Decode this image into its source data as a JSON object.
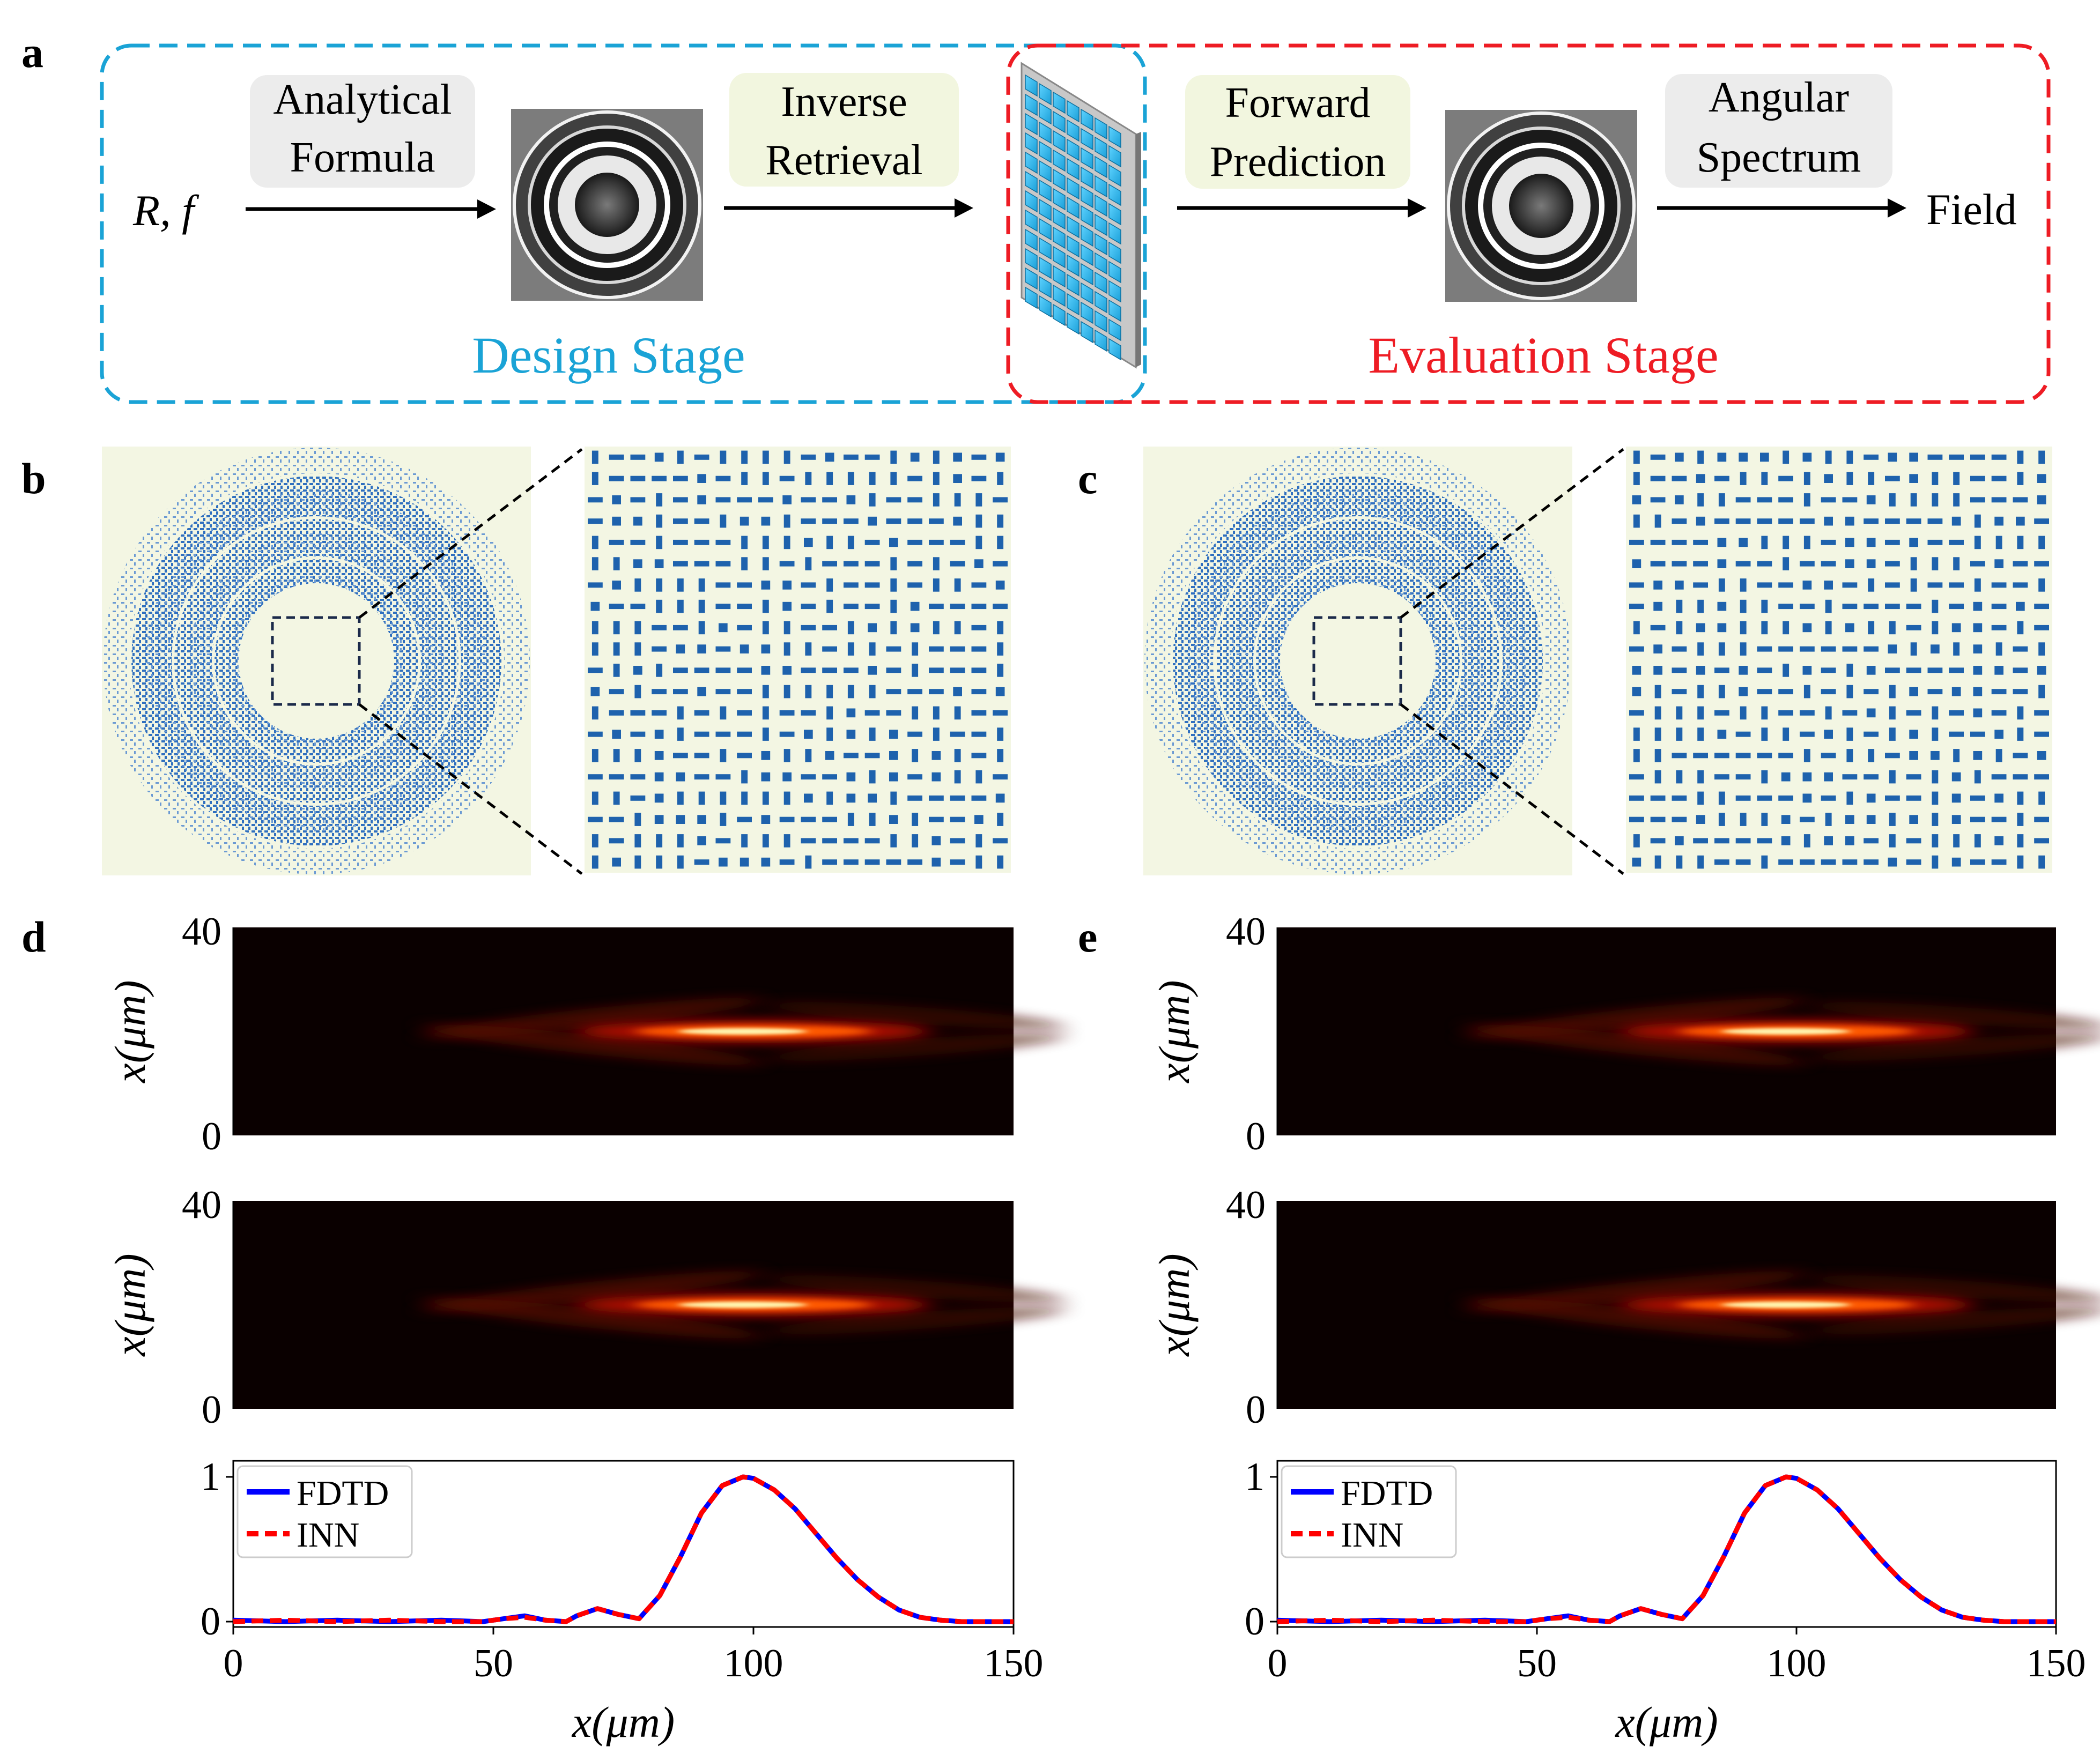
{
  "panels": {
    "a": {
      "label": "a",
      "input_text": "R, f",
      "box_analytical": [
        "Analytical",
        "Formula"
      ],
      "box_inverse": [
        "Inverse",
        "Retrieval"
      ],
      "box_forward": [
        "Forward",
        "Prediction"
      ],
      "box_angular": [
        "Angular",
        "Spectrum"
      ],
      "output_text": "Field",
      "design_stage": "Design Stage",
      "evaluation_stage": "Evaluation Stage"
    },
    "b": {
      "label": "b"
    },
    "c": {
      "label": "c"
    },
    "d": {
      "label": "d"
    },
    "e": {
      "label": "e"
    }
  },
  "colors": {
    "design": "#1aa3d6",
    "evaluation": "#ee1c24",
    "box_gray": "#ececec",
    "box_green": "#f2f6df",
    "meta_cell": "#1e62ad",
    "meta_bg": "#f3f6e3",
    "fdtd": "#0000ff",
    "inn": "#ff0000"
  },
  "icons": {
    "phase_map": "concentric-ring-phase-icon",
    "metasurface": "metasurface-pillar-array-icon"
  },
  "chart_data": [
    {
      "id": "d-top",
      "type": "heatmap",
      "ylabel": "x(μm)",
      "yticks": [
        "0",
        "40"
      ],
      "ylim": [
        0,
        40
      ],
      "xlim": [
        0,
        150
      ],
      "focus_center": [
        100,
        20
      ]
    },
    {
      "id": "d-mid",
      "type": "heatmap",
      "ylabel": "x(μm)",
      "yticks": [
        "0",
        "40"
      ],
      "ylim": [
        0,
        40
      ],
      "xlim": [
        0,
        150
      ],
      "focus_center": [
        100,
        20
      ]
    },
    {
      "id": "d-bottom",
      "type": "line",
      "xlabel": "x(μm)",
      "xticks": [
        "0",
        "50",
        "100",
        "150"
      ],
      "yticks": [
        "0",
        "1"
      ],
      "xlim": [
        0,
        150
      ],
      "ylim": [
        0,
        1
      ],
      "legend": [
        "FDTD",
        "INN"
      ],
      "legend_position": "top-left",
      "x": [
        0,
        10,
        20,
        30,
        40,
        48,
        52,
        56,
        60,
        64,
        66,
        70,
        74,
        78,
        82,
        86,
        90,
        94,
        98,
        100,
        104,
        108,
        112,
        116,
        120,
        124,
        128,
        132,
        136,
        140,
        150
      ],
      "series": [
        {
          "name": "FDTD",
          "values": [
            0.01,
            0.0,
            0.01,
            0.0,
            0.01,
            0.0,
            0.02,
            0.04,
            0.01,
            0.0,
            0.04,
            0.09,
            0.05,
            0.02,
            0.18,
            0.45,
            0.75,
            0.94,
            1.0,
            0.99,
            0.91,
            0.78,
            0.61,
            0.44,
            0.29,
            0.17,
            0.08,
            0.03,
            0.01,
            0.0,
            0.0
          ]
        },
        {
          "name": "INN",
          "values": [
            0.0,
            0.01,
            0.0,
            0.01,
            0.0,
            0.0,
            0.02,
            0.03,
            0.01,
            0.0,
            0.04,
            0.09,
            0.05,
            0.02,
            0.18,
            0.45,
            0.75,
            0.94,
            1.0,
            0.99,
            0.91,
            0.78,
            0.61,
            0.44,
            0.29,
            0.17,
            0.08,
            0.03,
            0.01,
            0.0,
            0.0
          ]
        }
      ]
    },
    {
      "id": "e-top",
      "type": "heatmap",
      "ylabel": "x(μm)",
      "yticks": [
        "0",
        "40"
      ],
      "ylim": [
        0,
        40
      ],
      "xlim": [
        0,
        150
      ],
      "focus_center": [
        100,
        20
      ]
    },
    {
      "id": "e-mid",
      "type": "heatmap",
      "ylabel": "x(μm)",
      "yticks": [
        "0",
        "40"
      ],
      "ylim": [
        0,
        40
      ],
      "xlim": [
        0,
        150
      ],
      "focus_center": [
        100,
        20
      ]
    },
    {
      "id": "e-bottom",
      "type": "line",
      "xlabel": "x(μm)",
      "xticks": [
        "0",
        "50",
        "100",
        "150"
      ],
      "yticks": [
        "0",
        "1"
      ],
      "xlim": [
        0,
        150
      ],
      "ylim": [
        0,
        1
      ],
      "legend": [
        "FDTD",
        "INN"
      ],
      "legend_position": "top-left",
      "x": [
        0,
        10,
        20,
        30,
        40,
        48,
        52,
        56,
        60,
        64,
        66,
        70,
        74,
        78,
        82,
        86,
        90,
        94,
        98,
        100,
        104,
        108,
        112,
        116,
        120,
        124,
        128,
        132,
        136,
        140,
        150
      ],
      "series": [
        {
          "name": "FDTD",
          "values": [
            0.01,
            0.0,
            0.01,
            0.0,
            0.01,
            0.0,
            0.02,
            0.04,
            0.01,
            0.0,
            0.04,
            0.09,
            0.05,
            0.02,
            0.18,
            0.45,
            0.75,
            0.94,
            1.0,
            0.99,
            0.91,
            0.78,
            0.61,
            0.44,
            0.29,
            0.17,
            0.08,
            0.03,
            0.01,
            0.0,
            0.0
          ]
        },
        {
          "name": "INN",
          "values": [
            0.0,
            0.01,
            0.0,
            0.01,
            0.0,
            0.0,
            0.02,
            0.03,
            0.01,
            0.0,
            0.04,
            0.09,
            0.05,
            0.02,
            0.18,
            0.45,
            0.75,
            0.94,
            1.0,
            0.99,
            0.91,
            0.78,
            0.61,
            0.44,
            0.29,
            0.17,
            0.08,
            0.03,
            0.01,
            0.0,
            0.0
          ]
        }
      ]
    }
  ]
}
